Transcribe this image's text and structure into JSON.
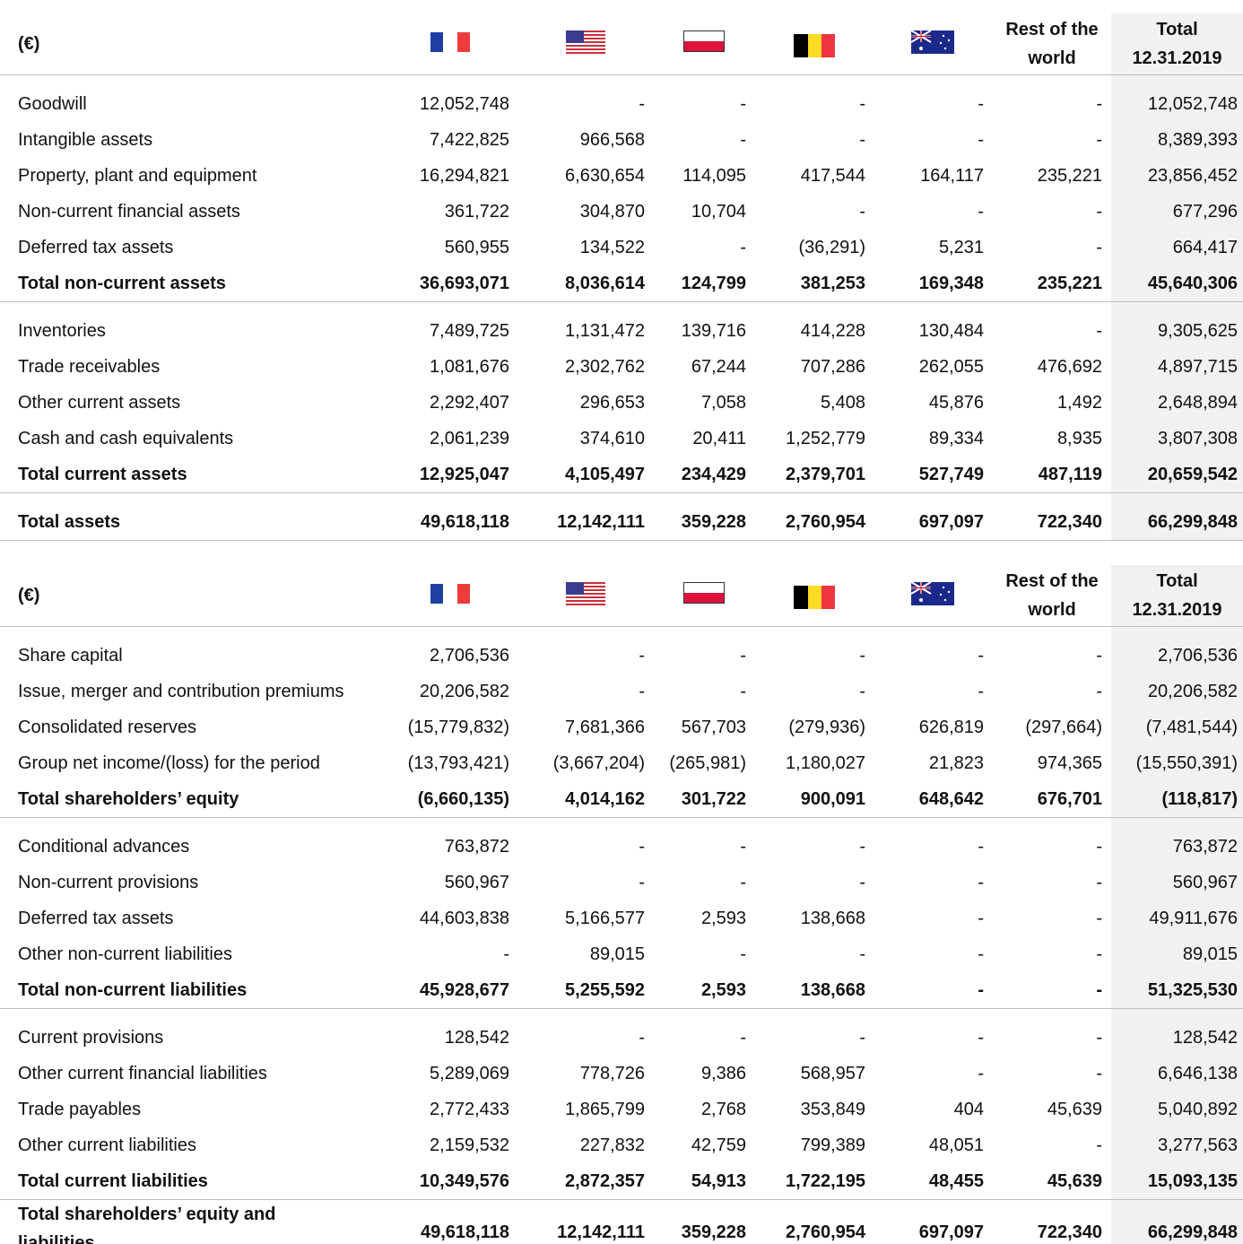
{
  "tables": [
    {
      "header": {
        "unit": "(€)",
        "rest": [
          "Rest of the",
          "world"
        ],
        "total": [
          "Total",
          "12.31.2019"
        ]
      },
      "groups": [
        {
          "rows": [
            {
              "label": "Goodwill",
              "values": [
                "12,052,748",
                "-",
                "-",
                "-",
                "-",
                "-",
                "12,052,748"
              ]
            },
            {
              "label": "Intangible assets",
              "values": [
                "7,422,825",
                "966,568",
                "-",
                "-",
                "-",
                "-",
                "8,389,393"
              ]
            },
            {
              "label": "Property, plant and equipment",
              "values": [
                "16,294,821",
                "6,630,654",
                "114,095",
                "417,544",
                "164,117",
                "235,221",
                "23,856,452"
              ]
            },
            {
              "label": "Non-current financial assets",
              "values": [
                "361,722",
                "304,870",
                "10,704",
                "-",
                "-",
                "-",
                "677,296"
              ]
            },
            {
              "label": "Deferred tax assets",
              "values": [
                "560,955",
                "134,522",
                "-",
                "(36,291)",
                "5,231",
                "-",
                "664,417"
              ]
            }
          ],
          "total": {
            "label": "Total non-current assets",
            "values": [
              "36,693,071",
              "8,036,614",
              "124,799",
              "381,253",
              "169,348",
              "235,221",
              "45,640,306"
            ]
          }
        },
        {
          "rows": [
            {
              "label": "Inventories",
              "values": [
                "7,489,725",
                "1,131,472",
                "139,716",
                "414,228",
                "130,484",
                "-",
                "9,305,625"
              ]
            },
            {
              "label": "Trade receivables",
              "values": [
                "1,081,676",
                "2,302,762",
                "67,244",
                "707,286",
                "262,055",
                "476,692",
                "4,897,715"
              ]
            },
            {
              "label": "Other current assets",
              "values": [
                "2,292,407",
                "296,653",
                "7,058",
                "5,408",
                "45,876",
                "1,492",
                "2,648,894"
              ]
            },
            {
              "label": "Cash and cash equivalents",
              "values": [
                "2,061,239",
                "374,610",
                "20,411",
                "1,252,779",
                "89,334",
                "8,935",
                "3,807,308"
              ]
            }
          ],
          "total": {
            "label": "Total current assets",
            "values": [
              "12,925,047",
              "4,105,497",
              "234,429",
              "2,379,701",
              "527,749",
              "487,119",
              "20,659,542"
            ]
          }
        }
      ],
      "grand_total": {
        "label": "Total assets",
        "values": [
          "49,618,118",
          "12,142,111",
          "359,228",
          "2,760,954",
          "697,097",
          "722,340",
          "66,299,848"
        ]
      }
    },
    {
      "header": {
        "unit": "(€)",
        "rest": [
          "Rest of the",
          "world"
        ],
        "total": [
          "Total",
          "12.31.2019"
        ]
      },
      "groups": [
        {
          "rows": [
            {
              "label": "Share capital",
              "values": [
                "2,706,536",
                "-",
                "-",
                "-",
                "-",
                "-",
                "2,706,536"
              ]
            },
            {
              "label": "Issue, merger and contribution premiums",
              "values": [
                "20,206,582",
                "-",
                "-",
                "-",
                "-",
                "-",
                "20,206,582"
              ]
            },
            {
              "label": "Consolidated reserves",
              "values": [
                "(15,779,832)",
                "7,681,366",
                "567,703",
                "(279,936)",
                "626,819",
                "(297,664)",
                "(7,481,544)"
              ]
            },
            {
              "label": "Group net income/(loss) for the period",
              "values": [
                "(13,793,421)",
                "(3,667,204)",
                "(265,981)",
                "1,180,027",
                "21,823",
                "974,365",
                "(15,550,391)"
              ]
            }
          ],
          "total": {
            "label": "Total shareholders’ equity",
            "values": [
              "(6,660,135)",
              "4,014,162",
              "301,722",
              "900,091",
              "648,642",
              "676,701",
              "(118,817)"
            ]
          }
        },
        {
          "rows": [
            {
              "label": "Conditional advances",
              "values": [
                "763,872",
                "-",
                "-",
                "-",
                "-",
                "-",
                "763,872"
              ]
            },
            {
              "label": "Non-current provisions",
              "values": [
                "560,967",
                "-",
                "-",
                "-",
                "-",
                "-",
                "560,967"
              ]
            },
            {
              "label": "Deferred tax assets",
              "values": [
                "44,603,838",
                "5,166,577",
                "2,593",
                "138,668",
                "-",
                "-",
                "49,911,676"
              ]
            },
            {
              "label": "Other non-current liabilities",
              "values": [
                "-",
                "89,015",
                "-",
                "-",
                "-",
                "-",
                "89,015"
              ]
            }
          ],
          "total": {
            "label": "Total non-current liabilities",
            "values": [
              "45,928,677",
              "5,255,592",
              "2,593",
              "138,668",
              "-",
              "-",
              "51,325,530"
            ]
          }
        },
        {
          "rows": [
            {
              "label": "Current provisions",
              "values": [
                "128,542",
                "-",
                "-",
                "-",
                "-",
                "-",
                "128,542"
              ]
            },
            {
              "label": "Other current financial liabilities",
              "values": [
                "5,289,069",
                "778,726",
                "9,386",
                "568,957",
                "-",
                "-",
                "6,646,138"
              ]
            },
            {
              "label": "Trade payables",
              "values": [
                "2,772,433",
                "1,865,799",
                "2,768",
                "353,849",
                "404",
                "45,639",
                "5,040,892"
              ]
            },
            {
              "label": "Other current liabilities",
              "values": [
                "2,159,532",
                "227,832",
                "42,759",
                "799,389",
                "48,051",
                "-",
                "3,277,563"
              ]
            }
          ],
          "total": {
            "label": "Total current liabilities",
            "values": [
              "10,349,576",
              "2,872,357",
              "54,913",
              "1,722,195",
              "48,455",
              "45,639",
              "15,093,135"
            ]
          }
        }
      ],
      "grand_total": {
        "label": "Total shareholders’ equity and liabilities",
        "values": [
          "49,618,118",
          "12,142,111",
          "359,228",
          "2,760,954",
          "697,097",
          "722,340",
          "66,299,848"
        ]
      }
    }
  ]
}
